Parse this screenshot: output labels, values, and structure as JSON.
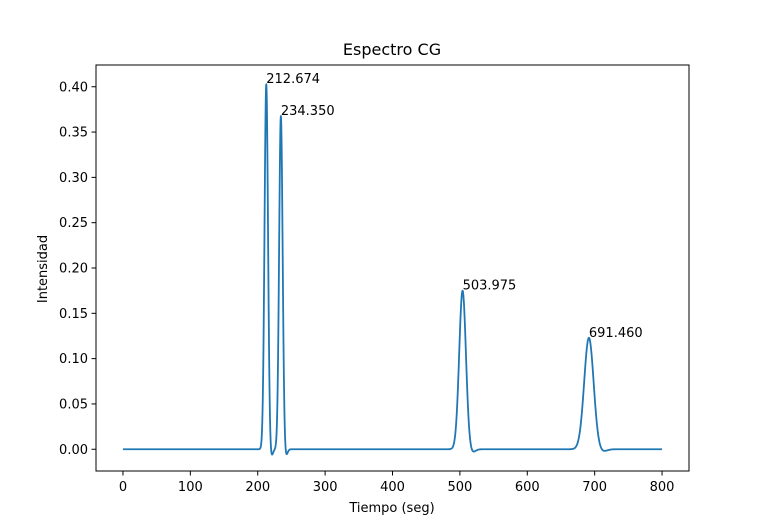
{
  "chart_data": {
    "type": "line",
    "title": "Espectro CG",
    "xlabel": "Tiempo (seg)",
    "ylabel": "Intensidad",
    "xlim": [
      -40,
      840
    ],
    "ylim": [
      -0.024,
      0.424
    ],
    "grid": false,
    "x_ticks": [
      0,
      100,
      200,
      300,
      400,
      500,
      600,
      700,
      800
    ],
    "y_ticks": [
      0.0,
      0.05,
      0.1,
      0.15,
      0.2,
      0.25,
      0.3,
      0.35,
      0.4
    ],
    "x_tick_labels": [
      "0",
      "100",
      "200",
      "300",
      "400",
      "500",
      "600",
      "700",
      "800"
    ],
    "y_tick_labels": [
      "0.00",
      "0.05",
      "0.10",
      "0.15",
      "0.20",
      "0.25",
      "0.30",
      "0.35",
      "0.40"
    ],
    "x_range": [
      0,
      800
    ],
    "peaks": [
      {
        "x": 212.674,
        "y": 0.403,
        "sigma": 2.6,
        "label": "212.674"
      },
      {
        "x": 234.35,
        "y": 0.368,
        "sigma": 2.6,
        "label": "234.350"
      },
      {
        "x": 503.975,
        "y": 0.175,
        "sigma": 5.0,
        "label": "503.975"
      },
      {
        "x": 691.46,
        "y": 0.123,
        "sigma": 7.0,
        "label": "691.460"
      }
    ],
    "series": [
      {
        "color": "#1f77b4"
      }
    ]
  }
}
